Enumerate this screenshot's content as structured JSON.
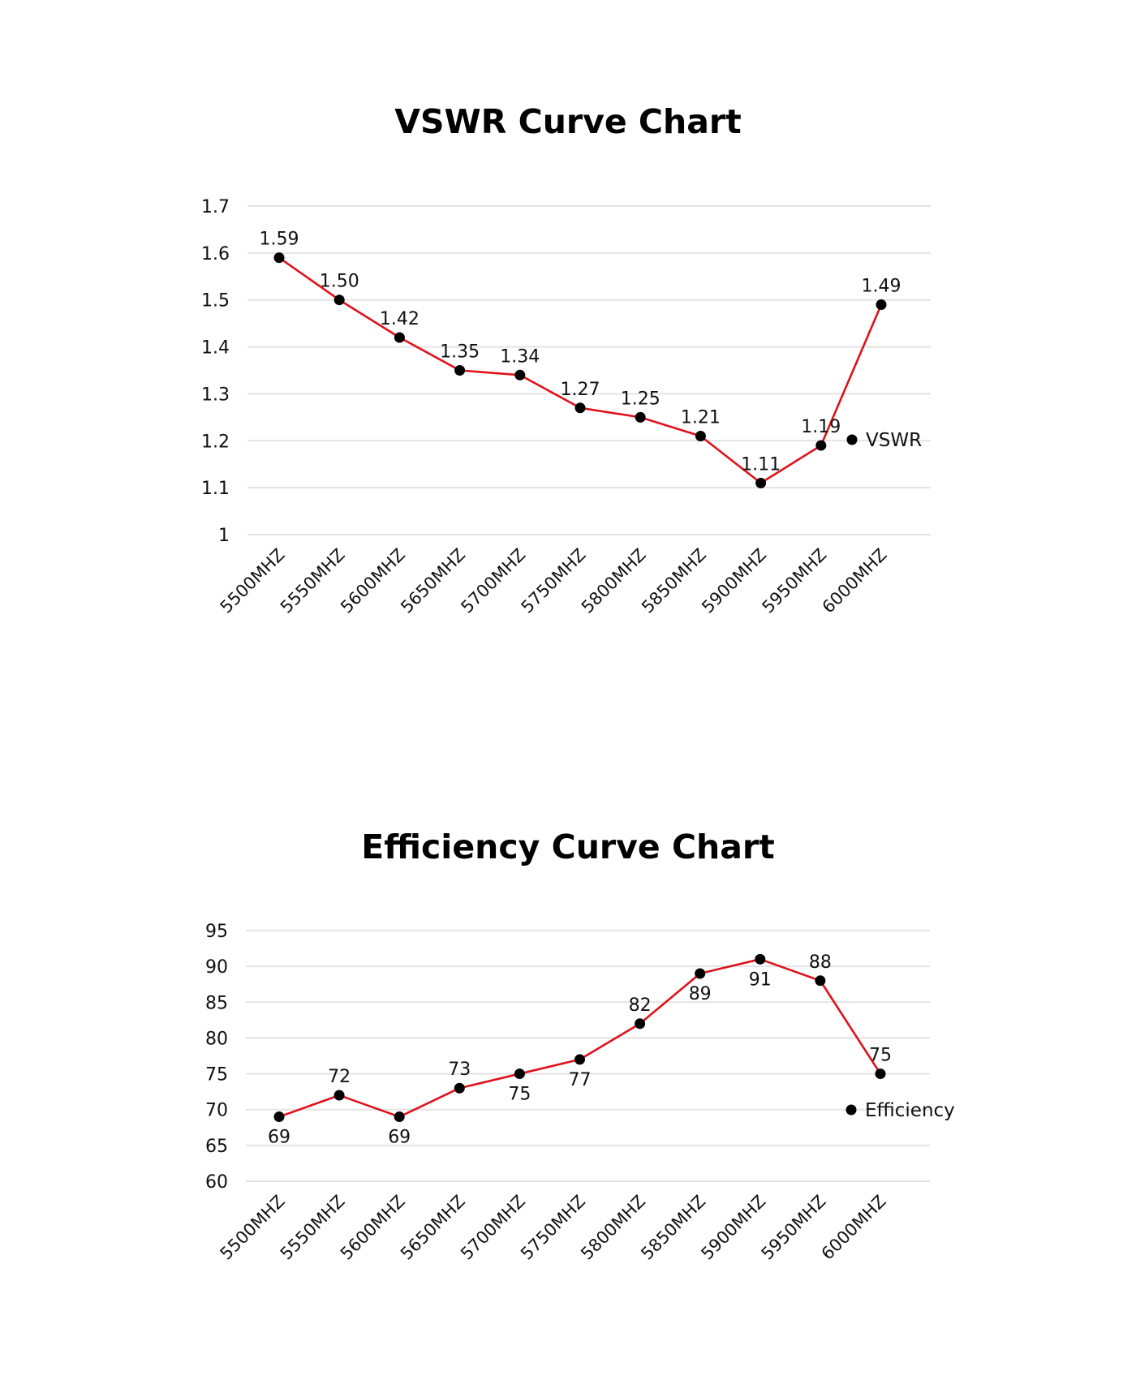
{
  "chart_data": [
    {
      "type": "line",
      "title": "VSWR Curve Chart",
      "xlabel": "",
      "ylabel": "",
      "categories": [
        "5500MHZ",
        "5550MHZ",
        "5600MHZ",
        "5650MHZ",
        "5700MHZ",
        "5750MHZ",
        "5800MHZ",
        "5850MHZ",
        "5900MHZ",
        "5950MHZ",
        "6000MHZ"
      ],
      "series": [
        {
          "name": "VSWR",
          "color": "#e0111b",
          "values": [
            1.59,
            1.5,
            1.42,
            1.35,
            1.34,
            1.27,
            1.25,
            1.21,
            1.11,
            1.19,
            1.49
          ],
          "labels": [
            "1.59",
            "1.50",
            "1.42",
            "1.35",
            "1.34",
            "1.27",
            "1.25",
            "1.21",
            "1.11",
            "1.19",
            "1.49"
          ],
          "label_position": [
            "above",
            "above",
            "above",
            "above",
            "above",
            "above",
            "above",
            "above",
            "above",
            "above",
            "above"
          ]
        }
      ],
      "yticks": [
        "1.7",
        "1.6",
        "1.5",
        "1.4",
        "1.3",
        "1.2",
        "1.1",
        "1"
      ],
      "ylim": [
        1.0,
        1.7
      ],
      "grid": true,
      "legend": {
        "entries": [
          "VSWR"
        ],
        "position": "right"
      }
    },
    {
      "type": "line",
      "title": "Efficiency Curve Chart",
      "xlabel": "",
      "ylabel": "",
      "categories": [
        "5500MHZ",
        "5550MHZ",
        "5600MHZ",
        "5650MHZ",
        "5700MHZ",
        "5750MHZ",
        "5800MHZ",
        "5850MHZ",
        "5900MHZ",
        "5950MHZ",
        "6000MHZ"
      ],
      "series": [
        {
          "name": "Efficiency",
          "color": "#e0111b",
          "values": [
            69,
            72,
            69,
            73,
            75,
            77,
            82,
            89,
            91,
            88,
            75
          ],
          "labels": [
            "69",
            "72",
            "69",
            "73",
            "75",
            "77",
            "82",
            "89",
            "91",
            "88",
            "75"
          ],
          "label_position": [
            "below",
            "above",
            "below",
            "above",
            "below",
            "below",
            "above",
            "below",
            "below",
            "above",
            "above"
          ]
        }
      ],
      "yticks": [
        "95",
        "90",
        "85",
        "80",
        "75",
        "70",
        "65",
        "60"
      ],
      "ylim": [
        60,
        95
      ],
      "grid": true,
      "legend": {
        "entries": [
          "Efficiency"
        ],
        "position": "right"
      }
    }
  ]
}
